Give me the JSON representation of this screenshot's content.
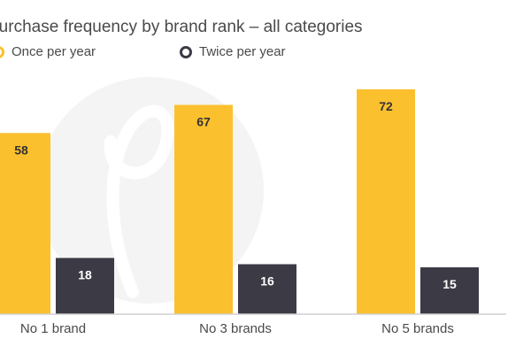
{
  "chart_data": {
    "type": "bar",
    "title": "Purchase frequency by brand rank – all categories",
    "categories": [
      "No 1 brand",
      "No 3 brands",
      "No 5 brands"
    ],
    "series": [
      {
        "name": "Once per year",
        "values": [
          58,
          67,
          72
        ],
        "color": "#fbc02d"
      },
      {
        "name": "Twice per year",
        "values": [
          18,
          16,
          15
        ],
        "color": "#3b3a45"
      }
    ],
    "ylim": [
      0,
      85
    ],
    "grid": false,
    "legend": "top-left",
    "data_labels": true
  },
  "colors": {
    "once": "#fbc02d",
    "twice": "#3b3a45",
    "axis": "#d0d0d0",
    "watermark": "#f4f4f4"
  }
}
